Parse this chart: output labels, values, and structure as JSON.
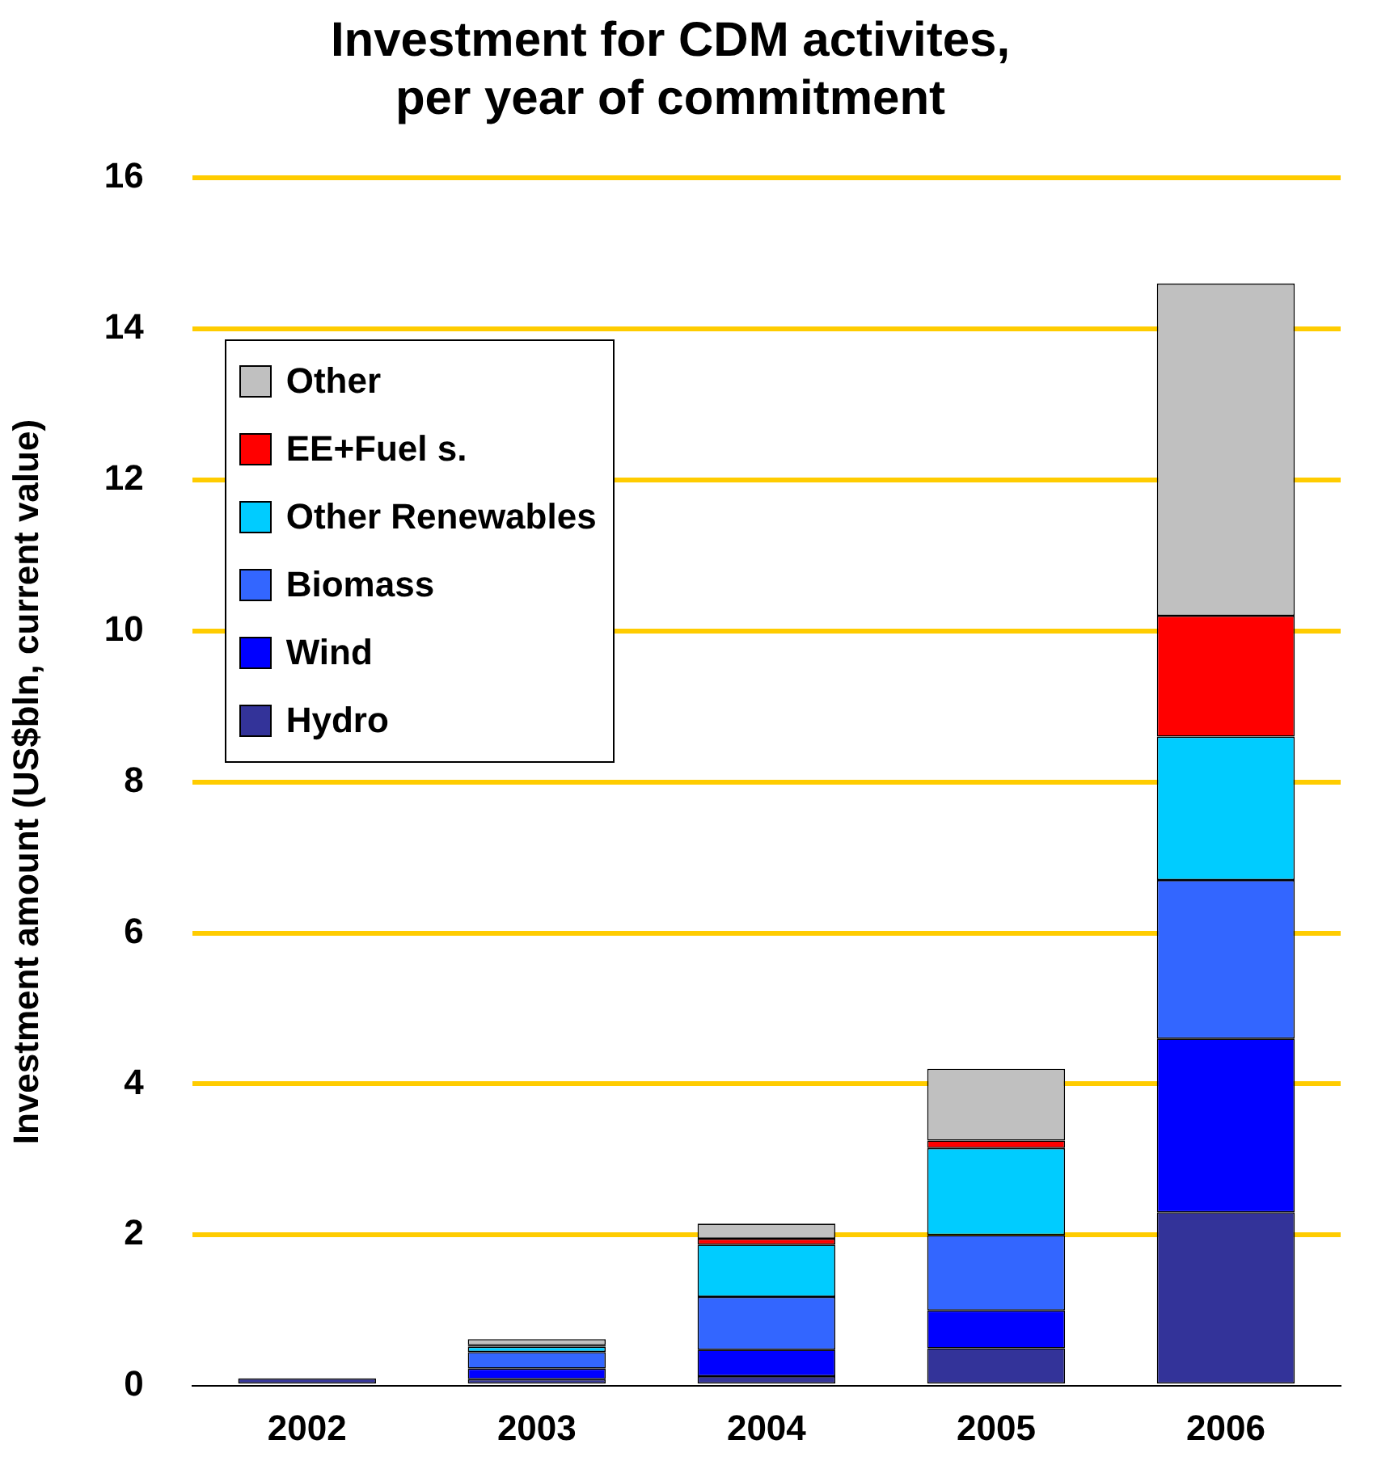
{
  "chart_data": {
    "type": "bar",
    "title": [
      "Investment for CDM activites,",
      "per year of commitment"
    ],
    "ylabel": "Investment amount (US$bln, current value)",
    "categories": [
      "2002",
      "2003",
      "2004",
      "2005",
      "2006"
    ],
    "stacked": true,
    "ylim": [
      0,
      16
    ],
    "yticks": [
      0,
      2,
      4,
      6,
      8,
      10,
      12,
      14,
      16
    ],
    "grid": "y",
    "legend": "top left",
    "series": [
      {
        "name": "Hydro",
        "color": "#333399",
        "values": [
          0.1,
          0.09,
          0.13,
          0.5,
          2.3
        ]
      },
      {
        "name": "Wind",
        "color": "#0000ff",
        "values": [
          0,
          0.14,
          0.35,
          0.5,
          2.3
        ]
      },
      {
        "name": "Biomass",
        "color": "#3366ff",
        "values": [
          0,
          0.22,
          0.7,
          1.0,
          2.1
        ]
      },
      {
        "name": "Other Renewables",
        "color": "#00ccff",
        "values": [
          0,
          0.07,
          0.69,
          1.15,
          1.9
        ]
      },
      {
        "name": "EE+Fuel s.",
        "color": "#ff0000",
        "values": [
          0,
          0.02,
          0.08,
          0.1,
          1.6
        ]
      },
      {
        "name": "Other",
        "color": "#c0c0c0",
        "values": [
          0,
          0.08,
          0.2,
          0.95,
          4.4
        ]
      }
    ]
  }
}
